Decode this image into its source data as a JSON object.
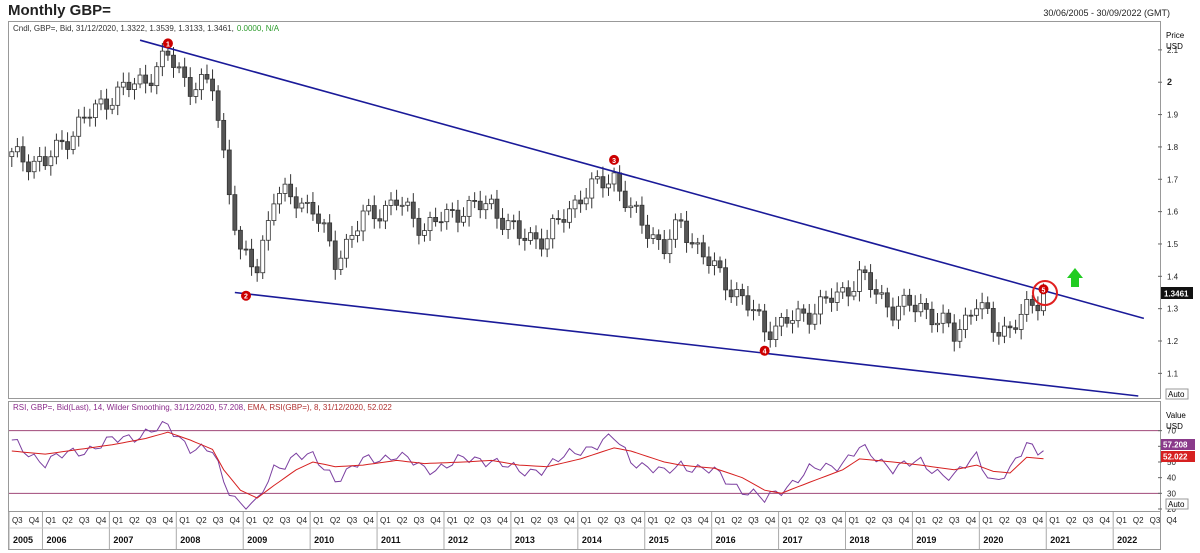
{
  "header": {
    "title": "Monthly GBP=",
    "date_range": "30/06/2005 - 30/09/2022 (GMT)"
  },
  "price_pane": {
    "legend_prefix": "Cndl, GBP=, Bid, 31/12/2020, 1.3322, 1.3539, 1.3133, 1.3461,",
    "legend_change": "0.0000, N/A",
    "axis_label_1": "Price",
    "axis_label_2": "USD",
    "last_price": "1.3461",
    "auto": "Auto"
  },
  "rsi_pane": {
    "legend_rsi": "RSI, GBP=, Bid(Last), 14, Wilder Smoothing, 31/12/2020, 57.208, ",
    "legend_ema": "EMA, RSI(GBP=), 8, 31/12/2020, 52.022",
    "axis_label_1": "Value",
    "axis_label_2": "USD",
    "rsi_value": "57.208",
    "ema_value": "52.022",
    "auto": "Auto"
  },
  "colors": {
    "trendline": "#1a1a99",
    "rsi_line": "#7b3fa0",
    "ema_line": "#d62020",
    "up_arrow": "#22cc22",
    "marker": "#cc0000"
  },
  "chart_data": [
    {
      "type": "candlestick",
      "title": "Monthly GBP=",
      "ylabel": "Price USD",
      "ylim": [
        1.03,
        2.18
      ],
      "y_ticks": [
        1.1,
        1.2,
        1.3,
        1.4,
        1.5,
        1.6,
        1.7,
        1.8,
        1.9,
        2,
        2.1
      ],
      "x_range": [
        "2005-07",
        "2022-09"
      ],
      "series": [
        {
          "name": "Monthly close (approx.)",
          "x": [
            "2005-07",
            "2006-01",
            "2006-07",
            "2007-01",
            "2007-07",
            "2007-11",
            "2008-03",
            "2008-07",
            "2008-09",
            "2008-12",
            "2009-03",
            "2009-06",
            "2009-10",
            "2010-01",
            "2010-05",
            "2010-10",
            "2011-04",
            "2011-09",
            "2012-04",
            "2012-09",
            "2013-02",
            "2013-07",
            "2014-01",
            "2014-07",
            "2014-10",
            "2015-04",
            "2015-07",
            "2016-01",
            "2016-06",
            "2016-10",
            "2017-01",
            "2017-06",
            "2017-12",
            "2018-03",
            "2018-09",
            "2019-02",
            "2019-08",
            "2019-12",
            "2020-03",
            "2020-06",
            "2020-09",
            "2020-12"
          ],
          "values": [
            1.77,
            1.75,
            1.87,
            1.96,
            2.01,
            2.08,
            1.99,
            1.99,
            1.78,
            1.46,
            1.43,
            1.65,
            1.64,
            1.61,
            1.45,
            1.58,
            1.63,
            1.55,
            1.61,
            1.62,
            1.52,
            1.52,
            1.65,
            1.71,
            1.6,
            1.49,
            1.56,
            1.42,
            1.33,
            1.24,
            1.25,
            1.29,
            1.35,
            1.4,
            1.3,
            1.31,
            1.22,
            1.32,
            1.24,
            1.24,
            1.29,
            1.3461
          ]
        }
      ],
      "trendlines": [
        {
          "name": "resistance",
          "points": [
            [
              "2007-06",
              2.13
            ],
            [
              "2022-06",
              1.27
            ]
          ]
        },
        {
          "name": "support",
          "points": [
            [
              "2008-11",
              1.35
            ],
            [
              "2022-05",
              1.03
            ]
          ]
        }
      ],
      "markers": [
        {
          "label": "1",
          "x": "2007-11",
          "y": 2.12
        },
        {
          "label": "2",
          "x": "2009-01",
          "y": 1.34
        },
        {
          "label": "3",
          "x": "2014-07",
          "y": 1.76
        },
        {
          "label": "4",
          "x": "2016-10",
          "y": 1.17
        },
        {
          "label": "5",
          "x": "2020-12",
          "y": 1.36
        }
      ]
    },
    {
      "type": "line",
      "title": "RSI",
      "ylabel": "Value USD",
      "ylim": [
        20,
        87
      ],
      "y_ticks": [
        20,
        30,
        40,
        50,
        60,
        70
      ],
      "reference_lines": [
        30,
        70
      ],
      "series": [
        {
          "name": "RSI",
          "x": [
            "2005-07",
            "2006-01",
            "2006-07",
            "2007-01",
            "2007-07",
            "2007-11",
            "2008-03",
            "2008-07",
            "2008-09",
            "2008-12",
            "2009-03",
            "2009-06",
            "2009-10",
            "2010-01",
            "2010-05",
            "2010-10",
            "2011-04",
            "2011-09",
            "2012-04",
            "2012-09",
            "2013-02",
            "2013-07",
            "2014-01",
            "2014-07",
            "2014-10",
            "2015-04",
            "2015-07",
            "2016-01",
            "2016-06",
            "2016-10",
            "2017-01",
            "2017-06",
            "2017-12",
            "2018-03",
            "2018-09",
            "2019-02",
            "2019-08",
            "2019-12",
            "2020-03",
            "2020-06",
            "2020-09",
            "2020-12"
          ],
          "values": [
            62,
            50,
            57,
            63,
            69,
            72,
            60,
            56,
            37,
            24,
            23,
            45,
            55,
            52,
            40,
            50,
            55,
            45,
            51,
            52,
            43,
            47,
            58,
            65,
            52,
            42,
            49,
            43,
            33,
            25,
            33,
            44,
            50,
            58,
            47,
            49,
            40,
            54,
            38,
            43,
            62,
            57.208
          ]
        },
        {
          "name": "EMA",
          "x": [
            "2005-07",
            "2006-01",
            "2006-07",
            "2007-01",
            "2007-07",
            "2007-11",
            "2008-03",
            "2008-07",
            "2008-09",
            "2008-12",
            "2009-03",
            "2009-06",
            "2009-10",
            "2010-01",
            "2010-05",
            "2010-10",
            "2011-04",
            "2011-09",
            "2012-04",
            "2012-09",
            "2013-02",
            "2013-07",
            "2014-01",
            "2014-07",
            "2014-10",
            "2015-04",
            "2015-07",
            "2016-01",
            "2016-06",
            "2016-10",
            "2017-01",
            "2017-06",
            "2017-12",
            "2018-03",
            "2018-09",
            "2019-02",
            "2019-08",
            "2019-12",
            "2020-03",
            "2020-06",
            "2020-09",
            "2020-12"
          ],
          "values": [
            57,
            55,
            58,
            61,
            65,
            69,
            64,
            58,
            45,
            32,
            27,
            35,
            45,
            50,
            47,
            48,
            51,
            49,
            50,
            51,
            48,
            47,
            52,
            59,
            57,
            50,
            48,
            46,
            40,
            32,
            30,
            37,
            45,
            52,
            50,
            48,
            45,
            48,
            44,
            43,
            53,
            52.022
          ]
        }
      ],
      "legend": [
        {
          "name": "RSI",
          "value": 57.208
        },
        {
          "name": "EMA",
          "value": 52.022
        }
      ]
    }
  ],
  "x_axis": {
    "quarter_labels": [
      "Q3",
      "Q4",
      "Q1",
      "Q2",
      "Q3",
      "Q4",
      "Q1",
      "Q2",
      "Q3",
      "Q4",
      "Q1",
      "Q2",
      "Q3",
      "Q4",
      "Q1",
      "Q2",
      "Q3",
      "Q4",
      "Q1",
      "Q2",
      "Q3",
      "Q4",
      "Q1",
      "Q2",
      "Q3",
      "Q4",
      "Q1",
      "Q2",
      "Q3",
      "Q4",
      "Q1",
      "Q2",
      "Q3",
      "Q4",
      "Q1",
      "Q2",
      "Q3",
      "Q4",
      "Q1",
      "Q2",
      "Q3",
      "Q4",
      "Q1",
      "Q2",
      "Q3",
      "Q4",
      "Q1",
      "Q2",
      "Q3",
      "Q4",
      "Q1",
      "Q2",
      "Q3",
      "Q4",
      "Q1",
      "Q2",
      "Q3",
      "Q4",
      "Q1",
      "Q2",
      "Q3",
      "Q4",
      "Q1",
      "Q2",
      "Q3",
      "Q4",
      "Q1",
      "Q2",
      "Q3",
      "Q4"
    ],
    "years": [
      "2005",
      "2006",
      "2007",
      "2008",
      "2009",
      "2010",
      "2011",
      "2012",
      "2013",
      "2014",
      "2015",
      "2016",
      "2017",
      "2018",
      "2019",
      "2020",
      "2021",
      "2022"
    ]
  }
}
